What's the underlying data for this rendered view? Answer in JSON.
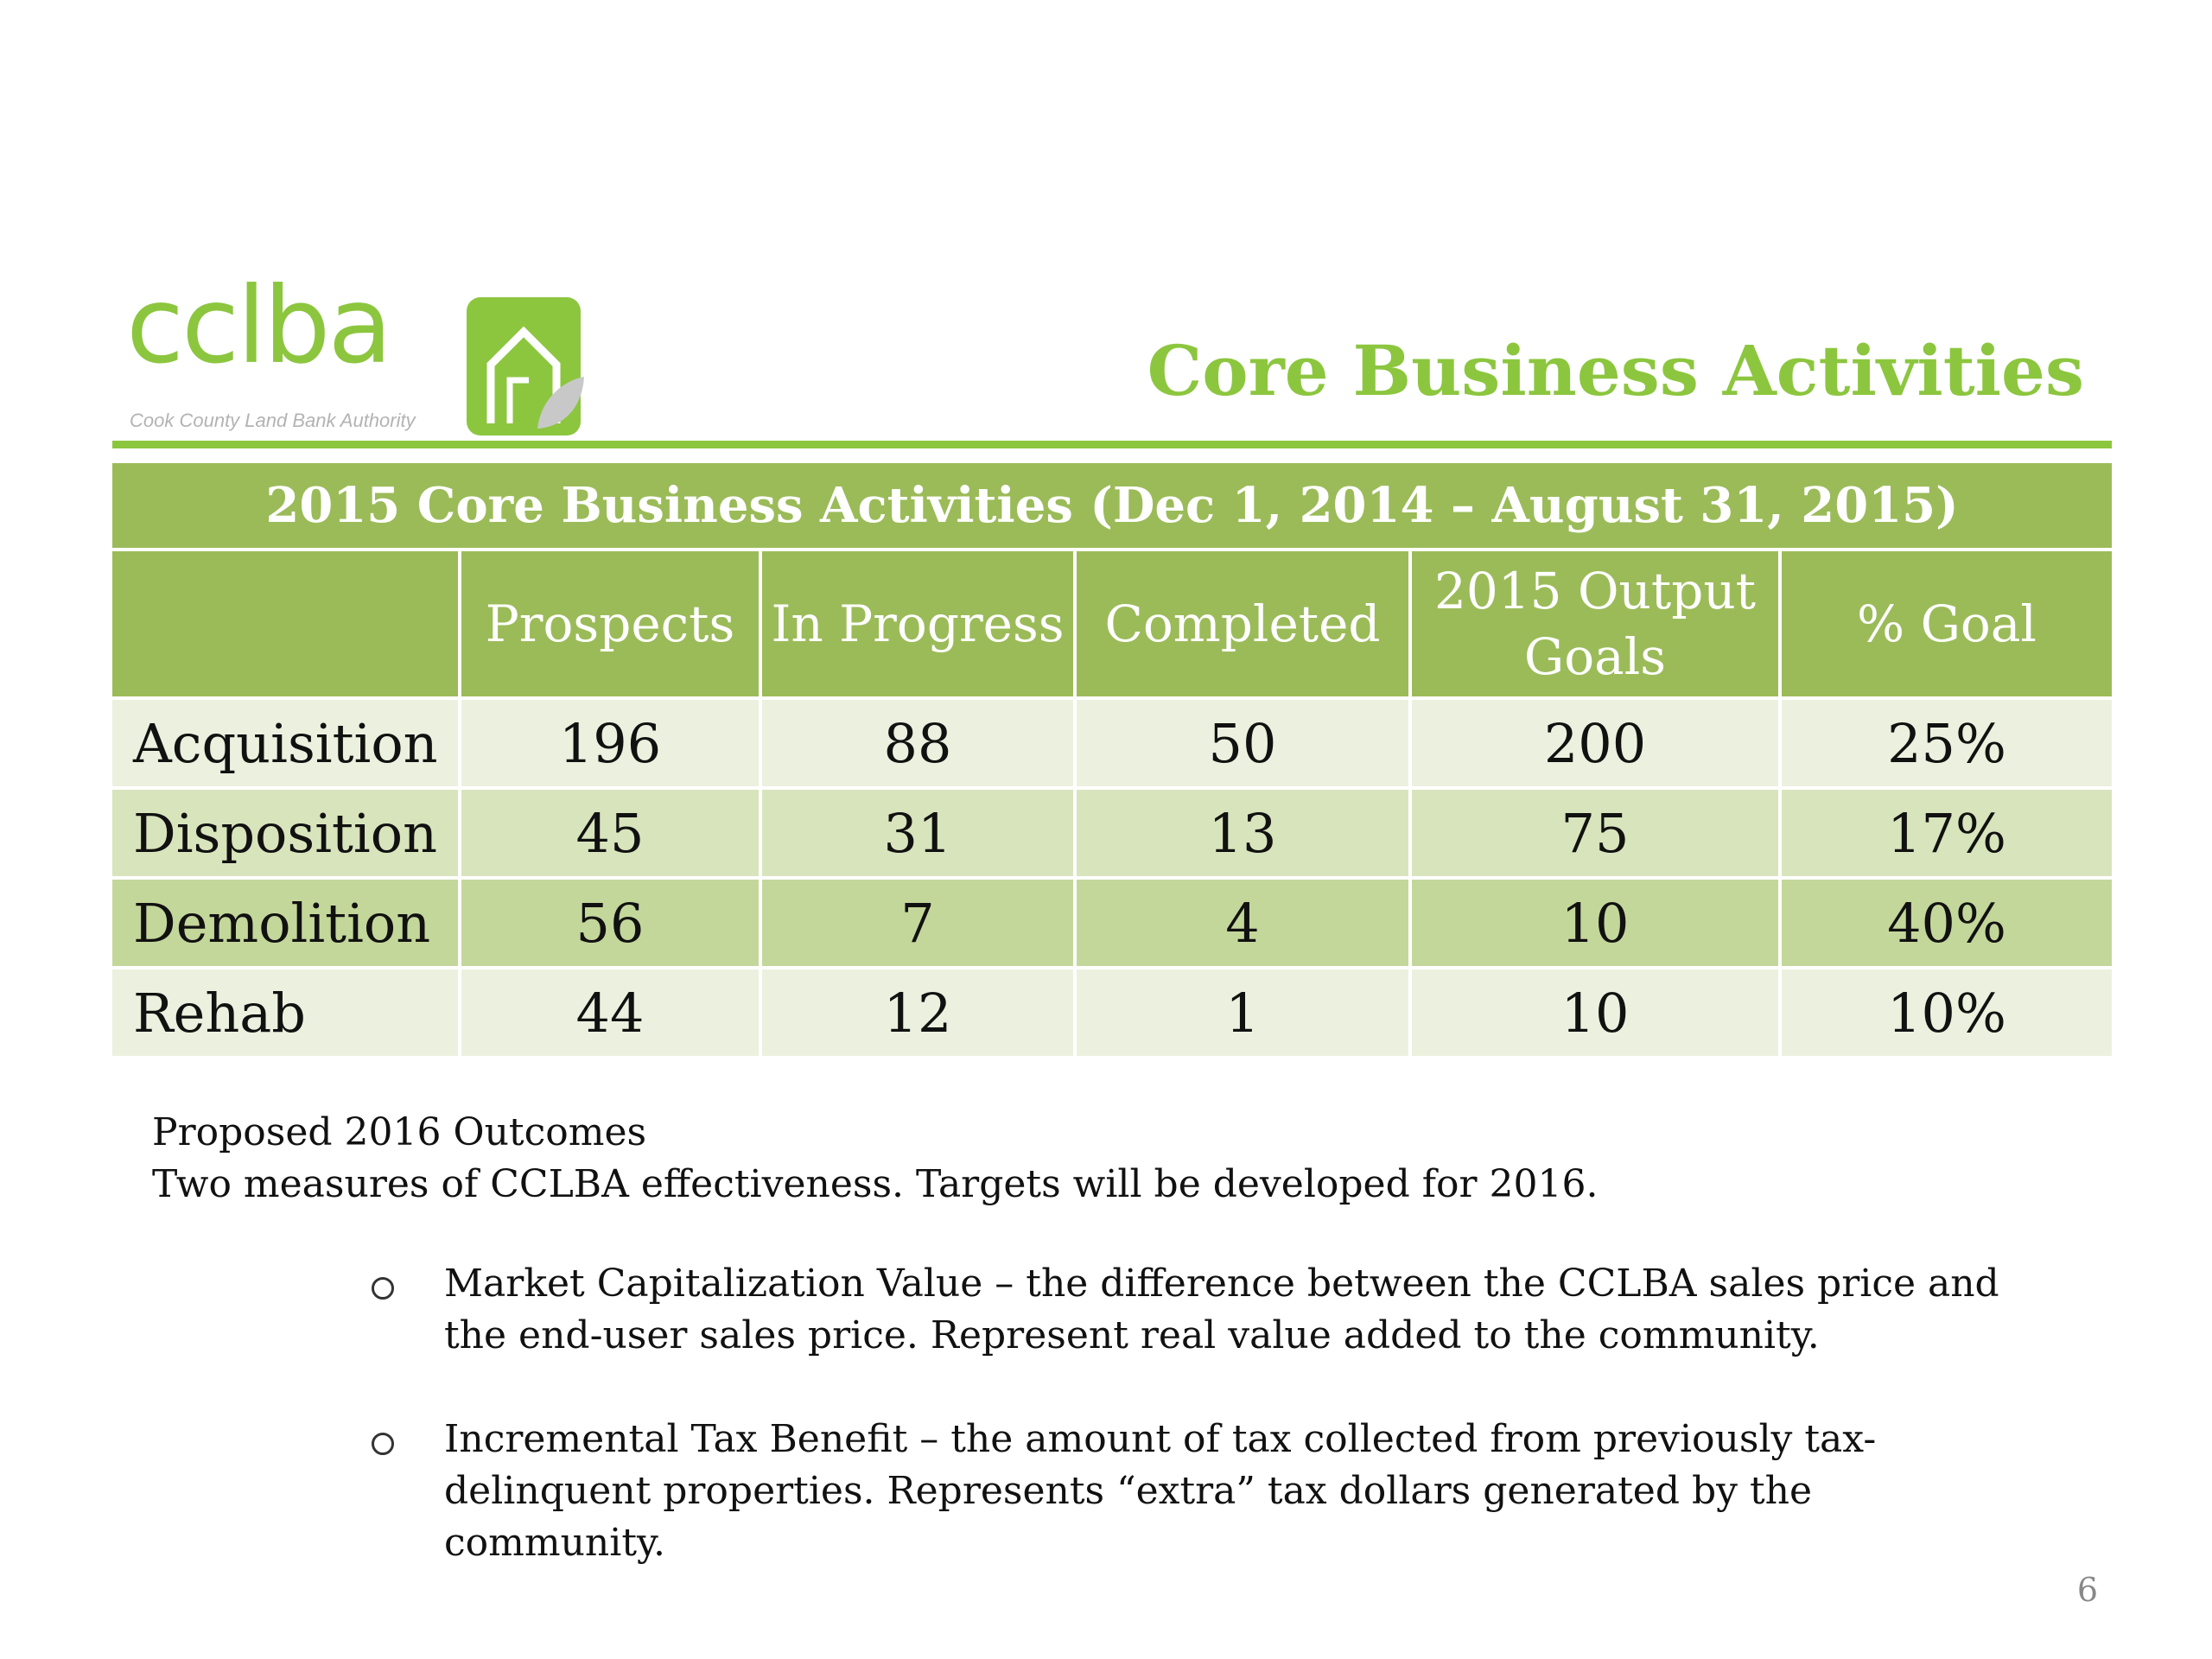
{
  "logo": {
    "wordmark": "cclba",
    "tagline": "Cook County Land Bank Authority"
  },
  "slide_title": "Core Business Activities",
  "table": {
    "caption": "2015 Core Business Activities (Dec 1, 2014 – August 31, 2015)",
    "headers": [
      "",
      "Prospects",
      "In Progress",
      "Completed",
      "2015 Output Goals",
      "% Goal"
    ],
    "rows": [
      {
        "label": "Acquisition",
        "prospects": "196",
        "in_progress": "88",
        "completed": "50",
        "goals": "200",
        "pct_goal": "25%"
      },
      {
        "label": "Disposition",
        "prospects": "45",
        "in_progress": "31",
        "completed": "13",
        "goals": "75",
        "pct_goal": "17%"
      },
      {
        "label": "Demolition",
        "prospects": "56",
        "in_progress": "7",
        "completed": "4",
        "goals": "10",
        "pct_goal": "40%"
      },
      {
        "label": "Rehab",
        "prospects": "44",
        "in_progress": "12",
        "completed": "1",
        "goals": "10",
        "pct_goal": "10%"
      }
    ]
  },
  "outcomes": {
    "heading": "Proposed 2016 Outcomes",
    "intro": "Two measures of CCLBA effectiveness.  Targets will be developed for 2016.",
    "bullets": [
      "Market Capitalization Value – the difference between the CCLBA sales price and the end-user sales price.  Represent real value added to the community.",
      "Incremental Tax Benefit – the amount of tax collected from previously tax-delinquent properties.  Represents “extra” tax dollars generated by the community."
    ]
  },
  "page_number": "6",
  "colors": {
    "brand_green": "#8cc63f",
    "table_header": "#9bbb59",
    "row_light": "#ebf1de",
    "row_mid": "#d8e4bc",
    "row_dark": "#c4d79b"
  }
}
